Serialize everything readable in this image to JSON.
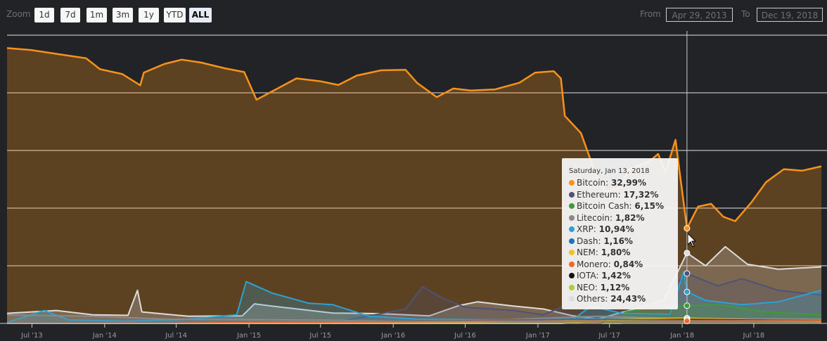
{
  "toolbar": {
    "zoom_label": "Zoom",
    "zoom_buttons": [
      "1d",
      "7d",
      "1m",
      "3m",
      "1y",
      "YTD",
      "ALL"
    ],
    "active_zoom": "ALL",
    "from_label": "From",
    "from_value": "Apr 29, 2013",
    "to_label": "To",
    "to_value": "Dec 19, 2018"
  },
  "tooltip": {
    "date": "Saturday, Jan 13, 2018",
    "rows": [
      {
        "name": "Bitcoin",
        "value": "32,99%",
        "color": "#f7931a"
      },
      {
        "name": "Ethereum",
        "value": "17,32%",
        "color": "#4e5277"
      },
      {
        "name": "Bitcoin Cash",
        "value": "6,15%",
        "color": "#3f9b3a"
      },
      {
        "name": "Litecoin",
        "value": "1,82%",
        "color": "#8a8a8a"
      },
      {
        "name": "XRP",
        "value": "10,94%",
        "color": "#2aa2d6"
      },
      {
        "name": "Dash",
        "value": "1,16%",
        "color": "#1c75bc"
      },
      {
        "name": "NEM",
        "value": "1,80%",
        "color": "#f2c12e"
      },
      {
        "name": "Monero",
        "value": "0,84%",
        "color": "#f26822"
      },
      {
        "name": "IOTA",
        "value": "1,42%",
        "color": "#111111"
      },
      {
        "name": "NEO",
        "value": "1,12%",
        "color": "#a6d12e"
      },
      {
        "name": "Others",
        "value": "24,43%",
        "color": "#dddddd"
      }
    ]
  },
  "chart_data": {
    "type": "area",
    "x_tick_labels": [
      "Jul '13",
      "Jan '14",
      "Jul '14",
      "Jan '15",
      "Jul '15",
      "Jan '16",
      "Jul '16",
      "Jan '17",
      "Jul '17",
      "Jan '18",
      "Jul '18"
    ],
    "ylim": [
      0,
      100
    ],
    "y_grid": [
      20,
      40,
      60,
      80,
      100
    ],
    "grid": true,
    "legend": "none",
    "crosshair_x": "2018-01-13",
    "x_range": [
      "2013-04-29",
      "2018-12-19"
    ],
    "series": [
      {
        "name": "Bitcoin",
        "color": "#f7931a",
        "points": [
          [
            "2013-04-29",
            95.5
          ],
          [
            "2013-07-01",
            94.8
          ],
          [
            "2013-09-01",
            93.5
          ],
          [
            "2013-11-15",
            92.0
          ],
          [
            "2013-12-20",
            88.2
          ],
          [
            "2014-02-15",
            86.5
          ],
          [
            "2014-04-01",
            82.6
          ],
          [
            "2014-04-10",
            87.0
          ],
          [
            "2014-06-01",
            90.0
          ],
          [
            "2014-07-15",
            91.5
          ],
          [
            "2014-09-01",
            90.5
          ],
          [
            "2014-11-01",
            88.5
          ],
          [
            "2014-12-20",
            87.2
          ],
          [
            "2015-01-20",
            77.6
          ],
          [
            "2015-03-01",
            80.5
          ],
          [
            "2015-05-01",
            85.0
          ],
          [
            "2015-07-01",
            84.0
          ],
          [
            "2015-08-15",
            82.7
          ],
          [
            "2015-10-01",
            86.0
          ],
          [
            "2015-12-01",
            87.8
          ],
          [
            "2016-02-01",
            88.0
          ],
          [
            "2016-03-01",
            83.5
          ],
          [
            "2016-04-20",
            78.5
          ],
          [
            "2016-06-01",
            81.5
          ],
          [
            "2016-07-15",
            80.8
          ],
          [
            "2016-09-15",
            81.2
          ],
          [
            "2016-11-15",
            83.5
          ],
          [
            "2016-12-25",
            87.0
          ],
          [
            "2017-02-10",
            87.5
          ],
          [
            "2017-02-28",
            85.0
          ],
          [
            "2017-03-10",
            72.0
          ],
          [
            "2017-04-20",
            66.0
          ],
          [
            "2017-06-01",
            50.0
          ],
          [
            "2017-06-20",
            45.8
          ],
          [
            "2017-07-25",
            47.0
          ],
          [
            "2017-08-20",
            53.5
          ],
          [
            "2017-10-10",
            56.2
          ],
          [
            "2017-11-01",
            58.8
          ],
          [
            "2017-11-20",
            52.5
          ],
          [
            "2017-12-15",
            63.7
          ],
          [
            "2017-12-25",
            53.0
          ],
          [
            "2018-01-13",
            32.99
          ],
          [
            "2018-02-10",
            40.5
          ],
          [
            "2018-03-15",
            41.5
          ],
          [
            "2018-04-15",
            37.0
          ],
          [
            "2018-05-15",
            35.5
          ],
          [
            "2018-06-25",
            42.0
          ],
          [
            "2018-08-01",
            49.0
          ],
          [
            "2018-09-15",
            53.5
          ],
          [
            "2018-11-01",
            53.0
          ],
          [
            "2018-12-19",
            54.5
          ]
        ]
      },
      {
        "name": "Others",
        "color": "#dddddd",
        "points": [
          [
            "2013-04-29",
            3.5
          ],
          [
            "2013-09-01",
            4.5
          ],
          [
            "2013-12-01",
            3.0
          ],
          [
            "2014-03-01",
            2.8
          ],
          [
            "2014-03-25",
            11.5
          ],
          [
            "2014-04-05",
            4.0
          ],
          [
            "2014-08-01",
            2.5
          ],
          [
            "2014-12-15",
            2.6
          ],
          [
            "2015-01-15",
            6.8
          ],
          [
            "2015-03-01",
            6.0
          ],
          [
            "2015-08-01",
            3.6
          ],
          [
            "2015-12-01",
            3.4
          ],
          [
            "2016-04-01",
            2.6
          ],
          [
            "2016-06-15",
            6.2
          ],
          [
            "2016-08-01",
            7.5
          ],
          [
            "2016-11-01",
            6.0
          ],
          [
            "2017-01-15",
            5.0
          ],
          [
            "2017-04-01",
            2.6
          ],
          [
            "2017-06-01",
            1.5
          ],
          [
            "2017-09-01",
            5.0
          ],
          [
            "2017-11-15",
            8.0
          ],
          [
            "2018-01-13",
            24.43
          ],
          [
            "2018-03-01",
            20.0
          ],
          [
            "2018-04-20",
            26.6
          ],
          [
            "2018-06-15",
            20.5
          ],
          [
            "2018-09-01",
            18.8
          ],
          [
            "2018-12-19",
            19.6
          ]
        ]
      },
      {
        "name": "Ethereum",
        "color": "#4e5277",
        "points": [
          [
            "2013-04-29",
            0
          ],
          [
            "2015-08-01",
            0.3
          ],
          [
            "2016-02-01",
            5.0
          ],
          [
            "2016-03-15",
            12.8
          ],
          [
            "2016-05-01",
            9.0
          ],
          [
            "2016-07-01",
            5.6
          ],
          [
            "2016-11-01",
            4.5
          ],
          [
            "2017-01-15",
            3.0
          ],
          [
            "2017-05-01",
            9.0
          ],
          [
            "2017-06-20",
            18.5
          ],
          [
            "2017-09-01",
            15.0
          ],
          [
            "2017-12-01",
            12.0
          ],
          [
            "2018-01-13",
            17.32
          ],
          [
            "2018-04-01",
            13.0
          ],
          [
            "2018-06-01",
            15.5
          ],
          [
            "2018-09-01",
            11.5
          ],
          [
            "2018-12-19",
            9.8
          ]
        ]
      },
      {
        "name": "XRP",
        "color": "#2aa2d6",
        "points": [
          [
            "2013-04-29",
            0.3
          ],
          [
            "2013-08-01",
            4.5
          ],
          [
            "2013-10-01",
            1.2
          ],
          [
            "2014-03-01",
            0.8
          ],
          [
            "2014-08-01",
            1.5
          ],
          [
            "2014-12-01",
            3.0
          ],
          [
            "2014-12-25",
            14.5
          ],
          [
            "2015-03-01",
            10.5
          ],
          [
            "2015-06-01",
            7.0
          ],
          [
            "2015-08-01",
            6.5
          ],
          [
            "2015-11-01",
            2.5
          ],
          [
            "2016-03-01",
            1.5
          ],
          [
            "2016-12-01",
            1.2
          ],
          [
            "2017-04-01",
            1.5
          ],
          [
            "2017-05-15",
            6.0
          ],
          [
            "2017-08-01",
            3.5
          ],
          [
            "2017-12-01",
            3.2
          ],
          [
            "2018-01-05",
            18.0
          ],
          [
            "2018-01-13",
            10.94
          ],
          [
            "2018-03-01",
            8.0
          ],
          [
            "2018-06-01",
            6.5
          ],
          [
            "2018-09-01",
            7.5
          ],
          [
            "2018-12-19",
            11.5
          ]
        ]
      },
      {
        "name": "Bitcoin Cash",
        "color": "#3f9b3a",
        "points": [
          [
            "2013-04-29",
            0
          ],
          [
            "2017-08-01",
            0
          ],
          [
            "2017-08-10",
            4.0
          ],
          [
            "2017-11-15",
            6.0
          ],
          [
            "2018-01-13",
            6.15
          ],
          [
            "2018-04-01",
            6.5
          ],
          [
            "2018-08-01",
            4.0
          ],
          [
            "2018-12-19",
            3.0
          ]
        ]
      },
      {
        "name": "Litecoin",
        "color": "#8a8a8a",
        "points": [
          [
            "2013-04-29",
            3.0
          ],
          [
            "2013-12-01",
            2.5
          ],
          [
            "2014-06-01",
            1.5
          ],
          [
            "2015-06-01",
            1.2
          ],
          [
            "2016-06-01",
            0.6
          ],
          [
            "2017-06-01",
            2.5
          ],
          [
            "2017-12-01",
            1.8
          ],
          [
            "2018-01-13",
            1.82
          ],
          [
            "2018-12-19",
            1.5
          ]
        ]
      },
      {
        "name": "NEM",
        "color": "#f2c12e",
        "points": [
          [
            "2013-04-29",
            0
          ],
          [
            "2015-04-01",
            0
          ],
          [
            "2016-06-01",
            0.3
          ],
          [
            "2017-06-01",
            1.5
          ],
          [
            "2018-01-13",
            1.8
          ],
          [
            "2018-12-19",
            0.5
          ]
        ]
      },
      {
        "name": "IOTA",
        "color": "#111111",
        "points": [
          [
            "2013-04-29",
            0
          ],
          [
            "2017-06-10",
            0
          ],
          [
            "2017-06-20",
            1.2
          ],
          [
            "2018-01-13",
            1.42
          ],
          [
            "2018-12-19",
            0.9
          ]
        ]
      },
      {
        "name": "NEO",
        "color": "#a6d12e",
        "points": [
          [
            "2013-04-29",
            0
          ],
          [
            "2017-03-01",
            0
          ],
          [
            "2017-07-01",
            1.0
          ],
          [
            "2018-01-13",
            1.12
          ],
          [
            "2018-12-19",
            0.6
          ]
        ]
      },
      {
        "name": "Dash",
        "color": "#1c75bc",
        "points": [
          [
            "2013-04-29",
            0
          ],
          [
            "2014-02-01",
            0.2
          ],
          [
            "2015-06-01",
            0.4
          ],
          [
            "2017-06-01",
            1.5
          ],
          [
            "2018-01-13",
            1.16
          ],
          [
            "2018-12-19",
            1.0
          ]
        ]
      },
      {
        "name": "Monero",
        "color": "#f26822",
        "points": [
          [
            "2013-04-29",
            0
          ],
          [
            "2014-06-01",
            0.1
          ],
          [
            "2016-08-01",
            0.8
          ],
          [
            "2017-06-01",
            0.7
          ],
          [
            "2018-01-13",
            0.84
          ],
          [
            "2018-12-19",
            0.9
          ]
        ]
      }
    ]
  }
}
